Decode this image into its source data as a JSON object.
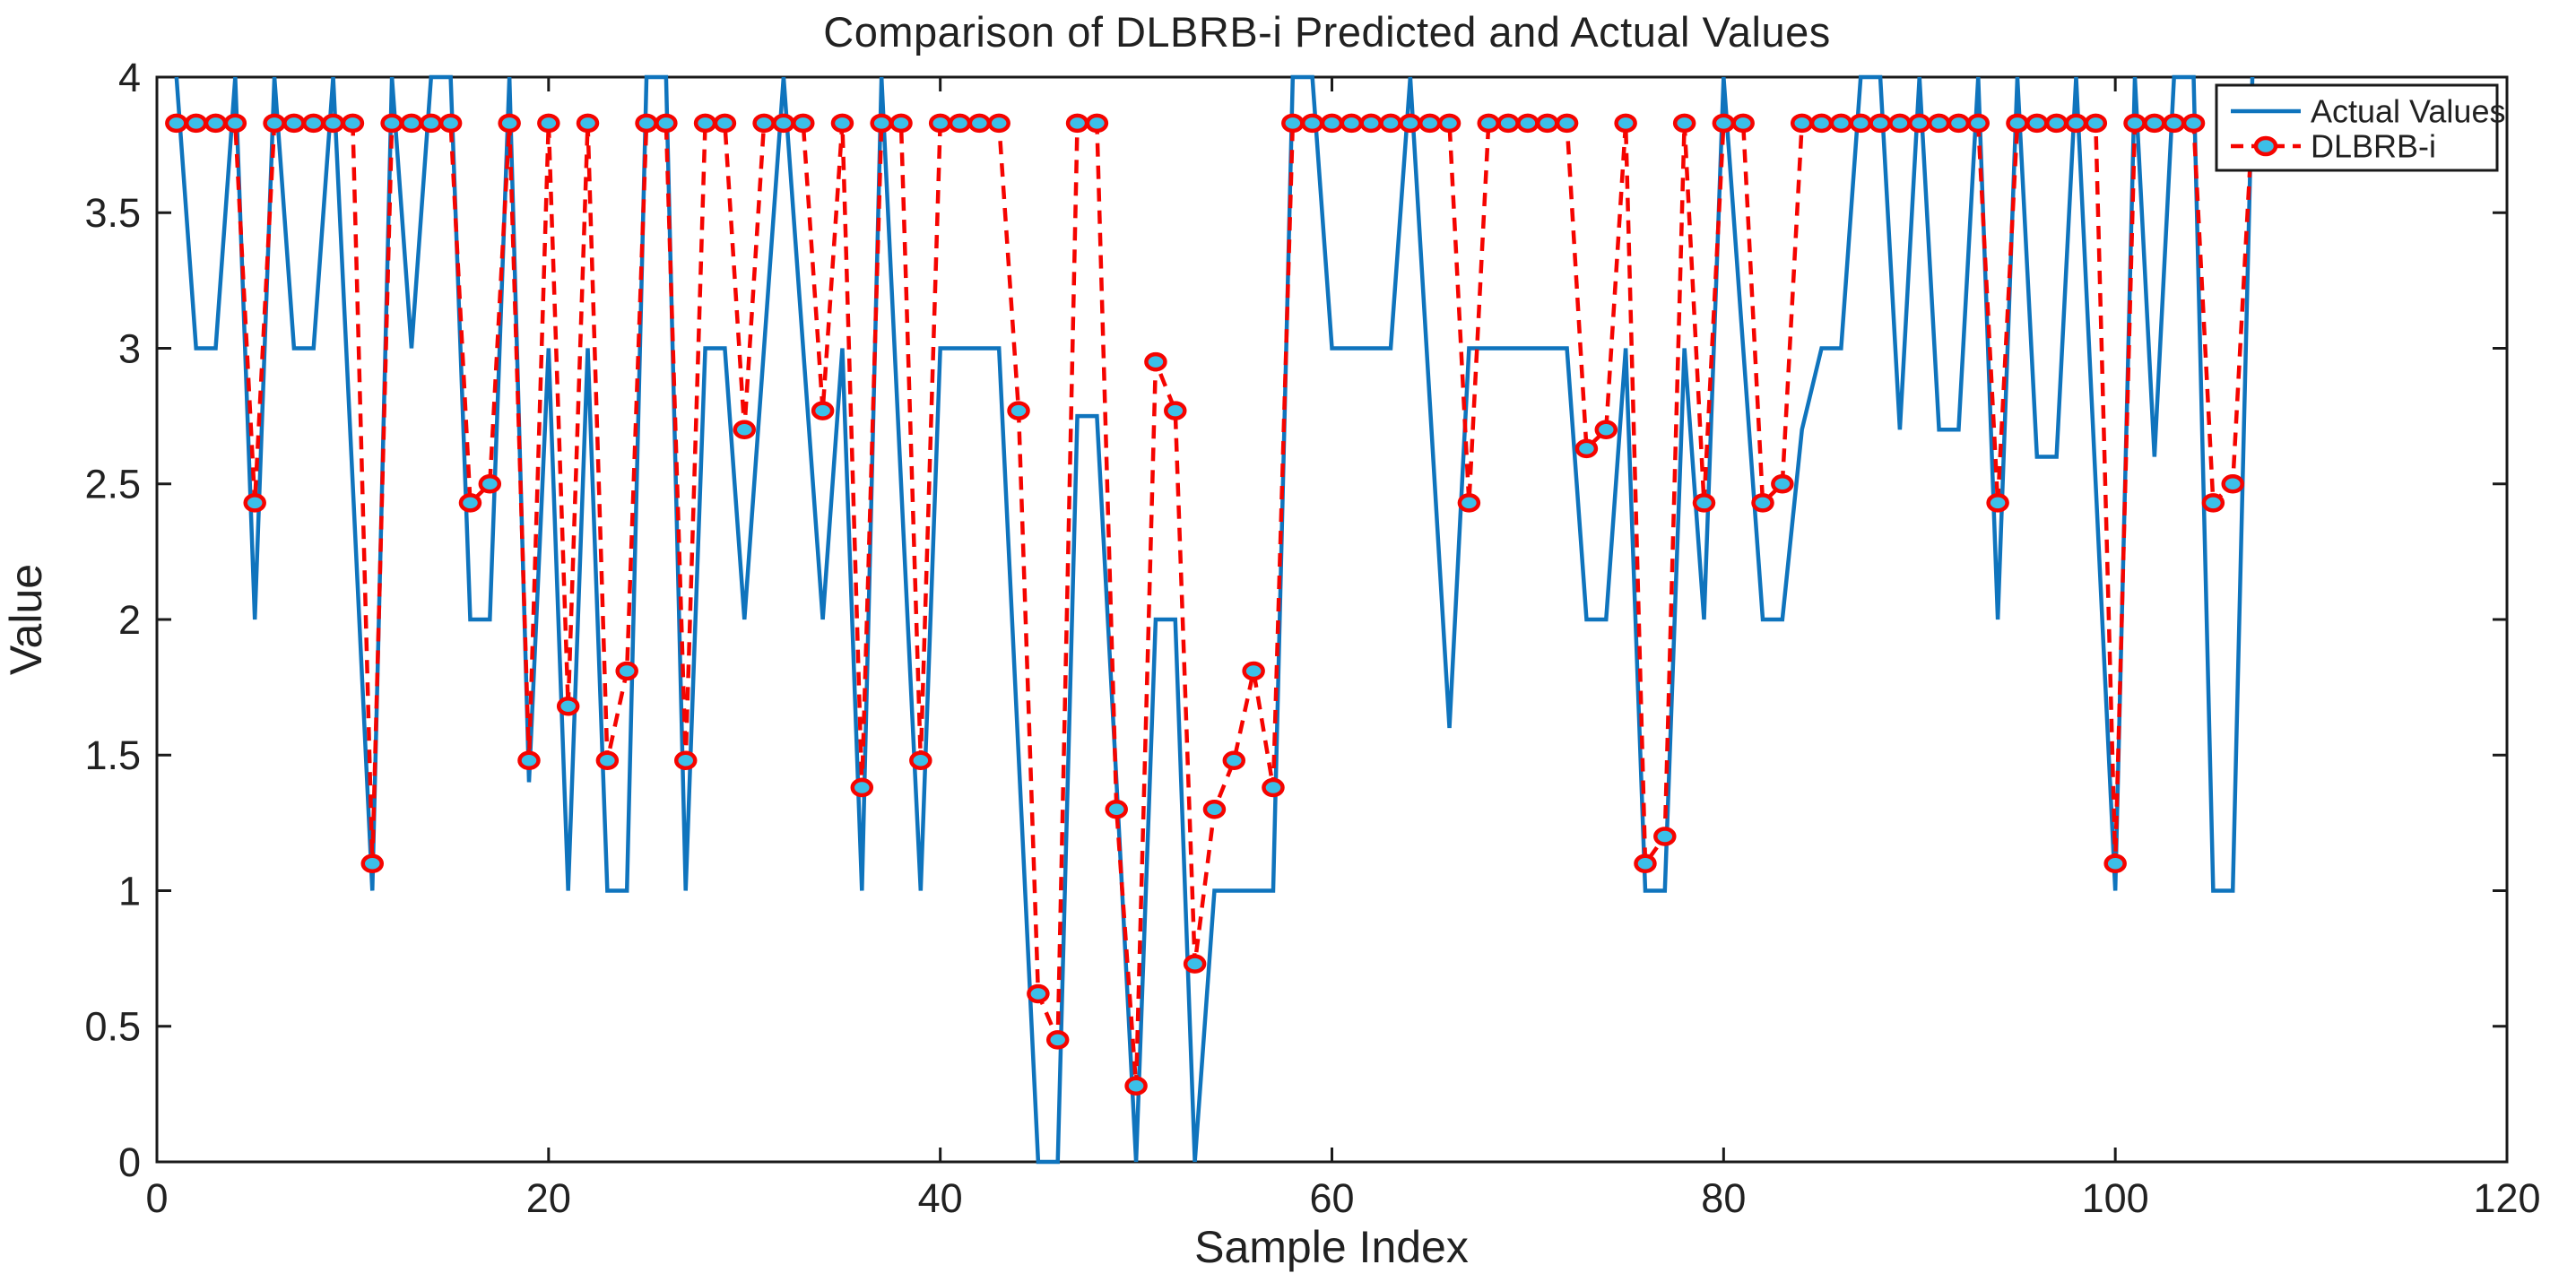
{
  "figure": {
    "title": "Comparison of DLBRB-i Predicted and Actual Values",
    "xlabel": "Sample Index",
    "ylabel": "Value"
  },
  "colors": {
    "actual_line": "#0f74bd",
    "predicted_line": "#f50400",
    "marker_face": "#3cbfe8",
    "marker_edge": "#f50400",
    "frame": "#1a1a1a",
    "text": "#212121",
    "background": "#ffffff"
  },
  "chart_data": {
    "type": "line",
    "title": "Comparison of DLBRB-i Predicted and Actual Values",
    "xlabel": "Sample Index",
    "ylabel": "Value",
    "xlim": [
      0,
      120
    ],
    "ylim": [
      0,
      4
    ],
    "x_ticks": [
      0,
      20,
      40,
      60,
      80,
      100,
      120
    ],
    "x_tick_labels": [
      "0",
      "20",
      "40",
      "60",
      "80",
      "100",
      "120"
    ],
    "y_ticks": [
      0,
      0.5,
      1,
      1.5,
      2,
      2.5,
      3,
      3.5,
      4
    ],
    "y_tick_labels": [
      "0",
      "0.5",
      "1",
      "1.5",
      "2",
      "2.5",
      "3",
      "3.5",
      "4"
    ],
    "grid": false,
    "legend_position": "top-right",
    "x": [
      1,
      2,
      3,
      4,
      5,
      6,
      7,
      8,
      9,
      10,
      11,
      12,
      13,
      14,
      15,
      16,
      17,
      18,
      19,
      20,
      21,
      22,
      23,
      24,
      25,
      26,
      27,
      28,
      29,
      30,
      31,
      32,
      33,
      34,
      35,
      36,
      37,
      38,
      39,
      40,
      41,
      42,
      43,
      44,
      45,
      46,
      47,
      48,
      49,
      50,
      51,
      52,
      53,
      54,
      55,
      56,
      57,
      58,
      59,
      60,
      61,
      62,
      63,
      64,
      65,
      66,
      67,
      68,
      69,
      70,
      71,
      72,
      73,
      74,
      75,
      76,
      77,
      78,
      79,
      80,
      81,
      82,
      83,
      84,
      85,
      86,
      87,
      88,
      89,
      90,
      91,
      92,
      93,
      94,
      95,
      96,
      97,
      98,
      99,
      100,
      101,
      102,
      103,
      104,
      105,
      106,
      107
    ],
    "series": [
      {
        "name": "Actual Values",
        "style": "solid",
        "color": "#0f74bd",
        "line_width": 4.5,
        "marker": "none",
        "values": [
          4,
          3,
          3,
          4,
          2,
          4,
          3,
          3,
          4,
          2.5,
          1,
          4,
          3,
          4,
          4,
          2,
          2,
          4,
          1.4,
          3,
          1,
          3,
          1,
          1,
          4,
          4,
          1,
          3,
          3,
          2,
          3,
          4,
          3,
          2,
          3,
          1,
          4,
          2.5,
          1,
          3,
          3,
          3,
          3,
          1.5,
          0,
          0,
          2.75,
          2.75,
          1.4,
          0,
          2,
          2,
          0,
          1,
          1,
          1,
          1,
          4,
          4,
          3,
          3,
          3,
          3,
          4,
          2.8,
          1.6,
          3,
          3,
          3,
          3,
          3,
          3,
          2,
          2,
          3,
          1,
          1,
          3,
          2,
          4,
          3,
          2,
          2,
          2.7,
          3,
          3,
          4,
          4,
          2.7,
          4,
          2.7,
          2.7,
          4,
          2,
          4,
          2.6,
          2.6,
          4,
          2.5,
          1,
          4,
          2.6,
          4,
          4,
          1,
          1,
          4
        ]
      },
      {
        "name": "DLBRB-i",
        "style": "dashed",
        "color": "#f50400",
        "line_width": 4.5,
        "marker": "o",
        "marker_face": "#3cbfe8",
        "marker_edge": "#f50400",
        "values": [
          3.83,
          3.83,
          3.83,
          3.83,
          2.43,
          3.83,
          3.83,
          3.83,
          3.83,
          3.83,
          1.1,
          3.83,
          3.83,
          3.83,
          3.83,
          2.43,
          2.5,
          3.83,
          1.48,
          3.83,
          1.68,
          3.83,
          1.48,
          1.81,
          3.83,
          3.83,
          1.48,
          3.83,
          3.83,
          2.7,
          3.83,
          3.83,
          3.83,
          2.77,
          3.83,
          1.38,
          3.83,
          3.83,
          1.48,
          3.83,
          3.83,
          3.83,
          3.83,
          2.77,
          0.62,
          0.45,
          3.83,
          3.83,
          1.3,
          0.28,
          2.95,
          2.77,
          0.73,
          1.3,
          1.48,
          1.81,
          1.38,
          3.83,
          3.83,
          3.83,
          3.83,
          3.83,
          3.83,
          3.83,
          3.83,
          3.83,
          2.43,
          3.83,
          3.83,
          3.83,
          3.83,
          3.83,
          2.63,
          2.7,
          3.83,
          1.1,
          1.2,
          3.83,
          2.43,
          3.83,
          3.83,
          2.43,
          2.5,
          3.83,
          3.83,
          3.83,
          3.83,
          3.83,
          3.83,
          3.83,
          3.83,
          3.83,
          3.83,
          2.43,
          3.83,
          3.83,
          3.83,
          3.83,
          3.83,
          1.1,
          3.83,
          3.83,
          3.83,
          3.83,
          2.43,
          2.5,
          3.83
        ]
      }
    ]
  }
}
